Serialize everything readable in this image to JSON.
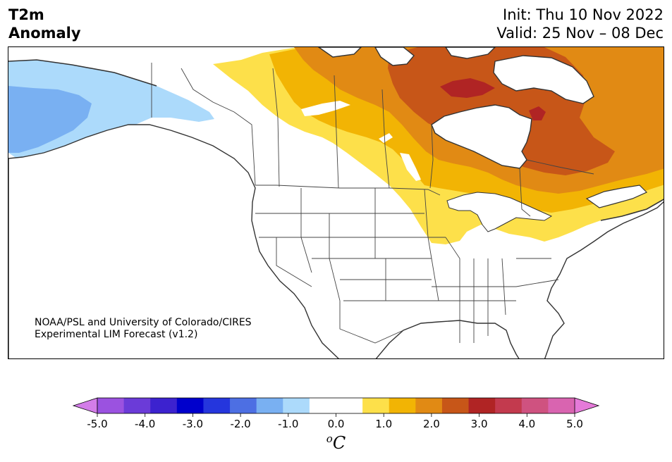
{
  "title": {
    "line1": "T2m",
    "line2": "Anomaly"
  },
  "info": {
    "init": "Init: Thu 10 Nov 2022",
    "valid": "Valid: 25 Nov – 08 Dec"
  },
  "credit": {
    "line1": "NOAA/PSL and University of Colorado/CIRES",
    "line2": "Experimental LIM Forecast (v1.2)"
  },
  "colorbar": {
    "unit_super": "o",
    "unit_main": "C",
    "tick_labels": [
      "-5.0",
      "-4.0",
      "-3.0",
      "-2.0",
      "-1.0",
      "0.0",
      "1.0",
      "2.0",
      "3.0",
      "4.0",
      "5.0"
    ],
    "colors": [
      "#9b52e0",
      "#6b3bd8",
      "#3c22cf",
      "#0000cc",
      "#2536dd",
      "#4d6fe3",
      "#79b0f2",
      "#acdafb",
      "#ffffff",
      "#ffffff",
      "#fde04a",
      "#f2b404",
      "#e18a14",
      "#c75618",
      "#b02424",
      "#c33a4e",
      "#cf5280",
      "#d964b0"
    ],
    "extend_low_color": "#d37de8",
    "extend_high_color": "#e57ad9"
  },
  "map": {
    "land_color": "#ffffff",
    "border_color": "#333333",
    "anomaly_colors": {
      "cool_light": "#acdafb",
      "cool_mid": "#79b0f2",
      "warm_1": "#fde04a",
      "warm_2": "#f2b404",
      "warm_3": "#e18a14",
      "warm_4": "#c75618",
      "warm_5": "#b02424"
    }
  }
}
